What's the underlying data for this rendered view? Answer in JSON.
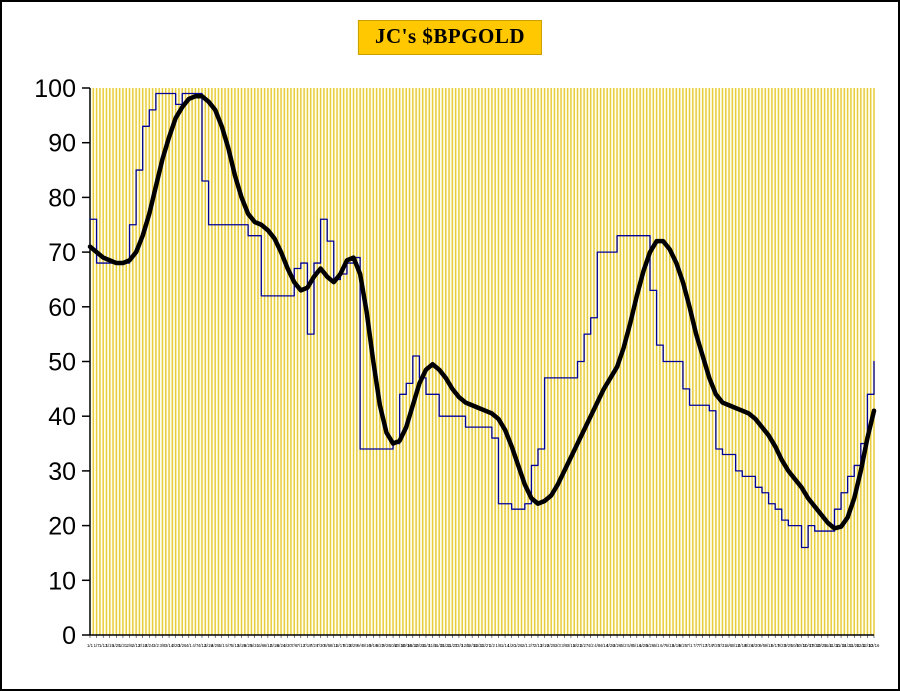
{
  "title": "JC's $BPGOLD",
  "colors": {
    "title_bg": "#FFC800",
    "plot_bg": "#FFFFEE",
    "grid": "#E8CC3F",
    "axis": "#000000",
    "bp_line": "#000099",
    "ma_line": "#000000"
  },
  "chart_data": {
    "type": "line",
    "title": "JC's $BPGOLD",
    "xlabel": "",
    "ylabel": "",
    "ylim": [
      0,
      100
    ],
    "yticks": [
      0,
      10,
      20,
      30,
      40,
      50,
      60,
      70,
      80,
      90,
      100
    ],
    "grid": "vertical-dense",
    "legend": "none",
    "x": [
      "1/1",
      "1/7",
      "1/13",
      "1/19",
      "1/25",
      "1/31",
      "2/6",
      "2/12",
      "2/18",
      "2/24",
      "3/2",
      "3/8",
      "3/14",
      "3/20",
      "3/26",
      "4/1",
      "4/7",
      "4/13",
      "4/19",
      "4/25",
      "5/1",
      "5/7",
      "5/13",
      "5/19",
      "5/25",
      "5/31",
      "6/6",
      "6/12",
      "6/18",
      "6/24",
      "6/30",
      "7/6",
      "7/12",
      "7/18",
      "7/24",
      "7/30",
      "8/5",
      "8/11",
      "8/17",
      "8/23",
      "8/29",
      "9/4",
      "9/10",
      "9/16",
      "9/22",
      "9/28",
      "10/4",
      "10/10",
      "10/16",
      "10/22",
      "10/28",
      "11/3",
      "11/9",
      "11/15",
      "11/21",
      "11/27",
      "12/3",
      "12/9",
      "12/15",
      "12/21",
      "12/27",
      "1/2",
      "1/8",
      "1/14",
      "1/20",
      "1/26",
      "2/1",
      "2/7",
      "2/13",
      "2/19",
      "2/25",
      "3/3",
      "3/9",
      "3/15",
      "3/21",
      "3/27",
      "4/2",
      "4/8",
      "4/14",
      "4/20",
      "4/26",
      "5/2",
      "5/8",
      "5/14",
      "5/20",
      "5/26",
      "6/1",
      "6/7",
      "6/13",
      "6/19",
      "6/25",
      "7/1",
      "7/7",
      "7/13",
      "7/19",
      "7/25",
      "7/31",
      "8/6",
      "8/12",
      "8/18",
      "8/24",
      "8/30",
      "9/5",
      "9/11",
      "9/17",
      "9/23",
      "9/29",
      "10/5",
      "10/11",
      "10/17",
      "10/23",
      "10/29",
      "11/4",
      "11/10",
      "11/16",
      "11/22",
      "11/28",
      "12/4",
      "12/10",
      "12/16"
    ],
    "series": [
      {
        "name": "$BPGOLD bullish percent",
        "color": "#000099",
        "width": 1.3,
        "style": "step",
        "values": [
          76,
          68,
          68,
          68,
          68,
          68,
          75,
          85,
          93,
          96,
          99,
          99,
          99,
          97,
          99,
          99,
          99,
          83,
          75,
          75,
          75,
          75,
          75,
          75,
          73,
          73,
          62,
          62,
          62,
          62,
          62,
          67,
          68,
          55,
          68,
          76,
          72,
          65,
          66,
          68,
          69,
          34,
          34,
          34,
          34,
          34,
          35,
          44,
          46,
          51,
          47,
          44,
          44,
          40,
          40,
          40,
          40,
          38,
          38,
          38,
          38,
          36,
          24,
          24,
          23,
          23,
          24,
          31,
          34,
          47,
          47,
          47,
          47,
          47,
          50,
          55,
          58,
          70,
          70,
          70,
          73,
          73,
          73,
          73,
          73,
          63,
          53,
          50,
          50,
          50,
          45,
          42,
          42,
          42,
          41,
          34,
          33,
          33,
          30,
          29,
          29,
          27,
          26,
          24,
          23,
          21,
          20,
          20,
          16,
          20,
          19,
          19,
          19,
          23,
          26,
          29,
          31,
          35,
          44,
          50
        ]
      },
      {
        "name": "moving average",
        "color": "#000000",
        "width": 4.5,
        "style": "smooth",
        "values": [
          71,
          70,
          69,
          68.5,
          68,
          68,
          68.5,
          70,
          73,
          77,
          82,
          87,
          91,
          94.5,
          96.5,
          98,
          98.5,
          98.5,
          97.5,
          96,
          93,
          89,
          84,
          80,
          77,
          75.5,
          75,
          74,
          72.5,
          70,
          67,
          64.5,
          63,
          63.5,
          65.5,
          67,
          65.5,
          64.5,
          66,
          68.5,
          69,
          66,
          59,
          50,
          42,
          37,
          35,
          35.5,
          38,
          42,
          46,
          48.5,
          49.5,
          48.5,
          47,
          45,
          43.5,
          42.5,
          42,
          41.5,
          41,
          40.5,
          39.5,
          37.5,
          34.5,
          31,
          27.5,
          25,
          24,
          24.5,
          25.5,
          27.5,
          30,
          32.5,
          35,
          37.5,
          40,
          42.5,
          45,
          47,
          49,
          52.5,
          57,
          62,
          66.5,
          70,
          72,
          72,
          70.5,
          68,
          64.5,
          60,
          55,
          51,
          47,
          44,
          42.5,
          42,
          41.5,
          41,
          40.5,
          39.5,
          38,
          36.5,
          34.5,
          32,
          30,
          28.5,
          27,
          25,
          23.5,
          22,
          20.5,
          19.5,
          19.8,
          21.5,
          25,
          30,
          36,
          41
        ]
      }
    ]
  }
}
